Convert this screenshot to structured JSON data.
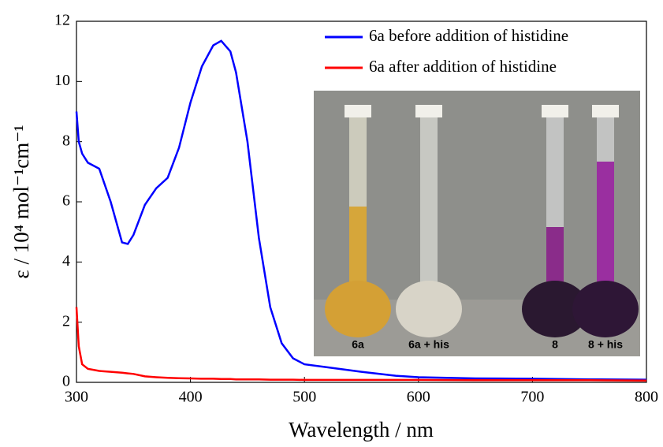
{
  "chart_data": {
    "type": "line",
    "x": [
      300,
      302,
      305,
      310,
      320,
      330,
      340,
      345,
      350,
      360,
      370,
      380,
      390,
      400,
      410,
      420,
      427,
      435,
      440,
      450,
      460,
      470,
      480,
      490,
      500,
      520,
      550,
      580,
      600,
      650,
      700,
      750,
      800
    ],
    "series": [
      {
        "name": "6a before addition of histidine",
        "color": "#0000ff",
        "values": [
          9.0,
          8.0,
          7.6,
          7.3,
          7.1,
          6.0,
          4.65,
          4.6,
          4.9,
          5.9,
          6.45,
          6.8,
          7.8,
          9.3,
          10.5,
          11.2,
          11.35,
          11.0,
          10.3,
          8.0,
          4.8,
          2.5,
          1.3,
          0.8,
          0.6,
          0.5,
          0.35,
          0.22,
          0.17,
          0.13,
          0.12,
          0.1,
          0.09
        ]
      },
      {
        "name": "6a after addition of histidine",
        "color": "#ff0000",
        "values": [
          2.5,
          1.2,
          0.6,
          0.45,
          0.38,
          0.35,
          0.32,
          0.3,
          0.28,
          0.2,
          0.17,
          0.15,
          0.14,
          0.13,
          0.12,
          0.12,
          0.11,
          0.11,
          0.1,
          0.1,
          0.1,
          0.09,
          0.09,
          0.09,
          0.08,
          0.08,
          0.08,
          0.08,
          0.08,
          0.07,
          0.07,
          0.07,
          0.06
        ]
      }
    ],
    "xlabel": "Wavelength / nm",
    "ylabel": "ε / 10⁴ mol⁻¹cm⁻¹",
    "xlim": [
      300,
      800
    ],
    "xticks": [
      300,
      400,
      500,
      600,
      700,
      800
    ],
    "ylim": [
      0,
      12
    ],
    "yticks": [
      0,
      2,
      4,
      6,
      8,
      10,
      12
    ],
    "legend": "upper-right",
    "annotations": [
      "6a",
      "6a + his",
      "8",
      "8 + his"
    ]
  }
}
